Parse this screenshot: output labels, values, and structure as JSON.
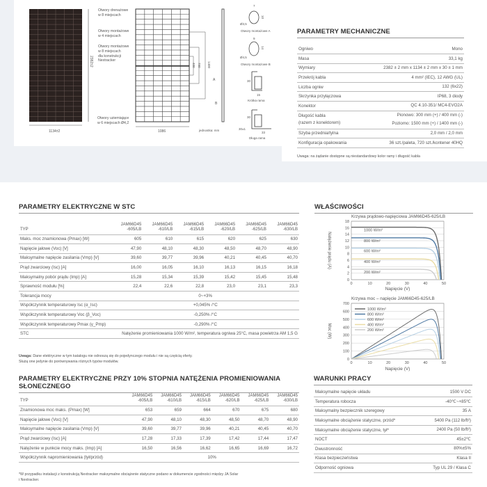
{
  "drawing": {
    "labels": {
      "drain": "Otwory drenażowe\nw 8 miejscach",
      "mount4": "Otwory montażowe\nw 4 miejscach",
      "mount8": "Otwory montażowe\nw 8 miejscach\ndla konstrukcji\nNextracker",
      "ground": "Otwory uziemiające\nw 6 miejscach Ø4,2",
      "holeA": "Otwory montażowe A",
      "holeB": "Otwory montażowe B",
      "shortFrame": "Krótka rama",
      "longFrame": "Długa rama",
      "unit": "jednostka: mm",
      "A": "A",
      "B": "B"
    },
    "dims": {
      "width": "1134±2",
      "height": "2382±2",
      "inner": "1086",
      "d400": "400",
      "d790": "790",
      "d1400": "1400",
      "thick": "30±1",
      "a7": "7",
      "a10": "10",
      "a35": "Ø3,5",
      "b9": "9",
      "b14": "14",
      "b45": "Ø4,5",
      "s30": "30",
      "s15": "15",
      "l30": "30",
      "l33": "33"
    }
  },
  "mechanical": {
    "title": "PARAMETRY MECHANICZNE",
    "rows": [
      [
        "Ogniwo",
        "Mono"
      ],
      [
        "Masa",
        "33,1 kg"
      ],
      [
        "Wymiary",
        "2382 ± 2 mm x 1134 ± 2 mm x 30 ± 1 mm"
      ],
      [
        "Przekrój kabla",
        "4 mm² (IEC), 12 AWG (UL)"
      ],
      [
        "Liczba ogniw",
        "132 (6x22)"
      ],
      [
        "Skrzynka przyłączowa",
        "IP68, 3 diody"
      ],
      [
        "Konektor",
        "QC 4.10-351/ MC4-EVO2A"
      ],
      [
        "Długość kabla\n(razem z konektorem)",
        "Pionowo: 300 mm (+) / 400 mm (-)\nPoziomo: 1500 mm (+) / 1400 mm (-)"
      ],
      [
        "Szyba przednia/tylna",
        "2,0 mm / 2,0 mm"
      ],
      [
        "Konfiguracja opakowania",
        "36 szt./paleta, 720 szt./kontener 40HQ"
      ]
    ],
    "note": "Uwaga: na żądanie dostępne są niestandardowy kolor ramy i długość kabla"
  },
  "stc": {
    "title": "PARAMETRY ELEKTRYCZNE W STC",
    "type_label": "TYP",
    "models": [
      "JAM66D45\n-605/LB",
      "JAM66D45\n-610/LB",
      "JAM66D45\n-615/LB",
      "JAM66D45\n-620/LB",
      "JAM66D45\n-625/LB",
      "JAM66D45\n-630/LB"
    ],
    "rows": [
      [
        "Maks. moc znamionowa (Pmax) [W]",
        "605",
        "610",
        "615",
        "620",
        "625",
        "630"
      ],
      [
        "Napięcie jałowe (Voc) [V]",
        "47,90",
        "48,10",
        "48,30",
        "48,50",
        "48,70",
        "48,90"
      ],
      [
        "Maksymalne napięcie zasilania (Vmp) [V]",
        "39,60",
        "39,77",
        "39,96",
        "40,21",
        "40,45",
        "40,70"
      ],
      [
        "Prąd zwarciowy (Isc) [A]",
        "16,00",
        "16,05",
        "16,10",
        "16,13",
        "16,15",
        "16,18"
      ],
      [
        "Maksymalny pobór prądu (Imp) [A]",
        "15,28",
        "15,34",
        "15,39",
        "15,42",
        "15,45",
        "15,48"
      ],
      [
        "Sprawność modułu [%]",
        "22,4",
        "22,6",
        "22,8",
        "23,0",
        "23,1",
        "23,3"
      ]
    ],
    "span_rows": [
      [
        "Tolerancja mocy",
        "0~+3%"
      ],
      [
        "Współczynnik temperaturowy Isc (α_Isc)",
        "+0,045% /°C"
      ],
      [
        "Współczynnik temperaturowy Voc (β_Voc)",
        "-0,250% /°C"
      ],
      [
        "Współczynnik temperaturowy Pmax (γ_Pmp)",
        "-0,290% /°C"
      ],
      [
        "STC",
        "Natężenie promieniowania 1000 W/m², temperatura ogniwa 25°C, masa powietrza AM 1,5 G"
      ]
    ],
    "note_bold": "Uwaga:",
    "note": " Dane elektryczne w tym katalogu nie odnoszą się do pojedynczego modułu i nie są częścią oferty.",
    "note2": "Służą one jedynie do porównywania różnych typów modułów."
  },
  "bifacial": {
    "title": "PARAMETRY ELEKTRYCZNE PRZY 10% STOPNIA NATĘŻENIA PROMIENIOWANIA SŁONECZNEGO",
    "type_label": "TYP",
    "models": [
      "JAM66D45\n-605/LB",
      "JAM66D45\n-610/LB",
      "JAM66D45\n-615/LB",
      "JAM66D45\n-620/LB",
      "JAM66D45\n-625/LB",
      "JAM66D45\n-630/LB"
    ],
    "rows": [
      [
        "Znamionowa moc maks. (Pmax) [W]",
        "653",
        "659",
        "664",
        "670",
        "675",
        "680"
      ],
      [
        "Napięcie jałowe (Voc) [V]",
        "47,90",
        "48,10",
        "48,30",
        "48,50",
        "48,70",
        "48,90"
      ],
      [
        "Maksymalne napięcie zasilania (Vmp) [V]",
        "39,60",
        "39,77",
        "39,96",
        "40,21",
        "40,45",
        "40,70"
      ],
      [
        "Prąd zwarciowy (Isc) [A]",
        "17,28",
        "17,33",
        "17,39",
        "17,42",
        "17,44",
        "17,47"
      ],
      [
        "Natężenie w punkcie mocy maks. (Imp) [A]",
        "16,50",
        "16,56",
        "16,62",
        "16,65",
        "16,69",
        "16,72"
      ]
    ],
    "span_rows": [
      [
        "Współczynnik napromieniowania (tył/przód)",
        "10%"
      ]
    ],
    "footnote": "*W przypadku instalacji z konstrukcją Nextracker maksymalne obciążenie statyczne podano w dokumencie zgodności między JA Solar\ni Nextracker."
  },
  "operating": {
    "title": "WARUNKI PRACY",
    "rows": [
      [
        "Maksymalne napięcie układu",
        "1500 V DC"
      ],
      [
        "Temperatura robocza",
        "-40℃~+85℃"
      ],
      [
        "Maksymalny bezpiecznik szeregowy",
        "35 A"
      ],
      [
        "Maksymalne obciążenie statyczne, przód*",
        "5400 Pa (112 lb/ft²)"
      ],
      [
        "Maksymalne obciążenie statyczne, tył*",
        "2400 Pa (50 lb/ft²)"
      ],
      [
        "NOCT",
        "45±2℃"
      ],
      [
        "Dwustronność",
        "80%±5%"
      ],
      [
        "Klasa bezpieczeństwa",
        "Klasa II"
      ],
      [
        "Odporność ogniowa",
        "Typ UL 29 / Klasa C"
      ]
    ]
  },
  "properties_title": "WŁAŚCIWOŚCI",
  "chart_data": [
    {
      "type": "line",
      "title": "Krzywa prądowo-napięciowa JAM66D45-625/LB",
      "xlabel": "Napięcie (V)",
      "ylabel": "Natężenie prądu (A)",
      "xlim": [
        0,
        50
      ],
      "ylim": [
        0,
        18
      ],
      "xticks": [
        "0",
        "10",
        "20",
        "30",
        "40",
        "50"
      ],
      "yticks": [
        "0",
        "2",
        "4",
        "6",
        "8",
        "10",
        "12",
        "14",
        "16",
        "18"
      ],
      "grid": true,
      "series": [
        {
          "name": "1000 W/m²",
          "color": "#6b6b6b",
          "isc": 16.15,
          "voc": 48.7
        },
        {
          "name": "800 W/m²",
          "color": "#4f79a3",
          "isc": 12.9,
          "voc": 48.4
        },
        {
          "name": "600 W/m²",
          "color": "#b6d0e4",
          "isc": 9.7,
          "voc": 47.9
        },
        {
          "name": "400 W/m²",
          "color": "#eadca4",
          "isc": 6.4,
          "voc": 47.2
        },
        {
          "name": "200 W/m²",
          "color": "#cccccc",
          "isc": 3.2,
          "voc": 46.0
        }
      ]
    },
    {
      "type": "line",
      "title": "Krzywa moc – napięcie JAM66D45-625/LB",
      "xlabel": "Napięcie (V)",
      "ylabel": "Moc (W)",
      "xlim": [
        0,
        50
      ],
      "ylim": [
        0,
        700
      ],
      "xticks": [
        "0",
        "10",
        "20",
        "30",
        "40",
        "50"
      ],
      "yticks": [
        "0",
        "100",
        "200",
        "300",
        "400",
        "500",
        "600",
        "700"
      ],
      "grid": true,
      "legend": "top-left",
      "series": [
        {
          "name": "1000 W/m²",
          "color": "#6b6b6b",
          "pmax": 625
        },
        {
          "name": "800 W/m²",
          "color": "#4f79a3",
          "pmax": 500
        },
        {
          "name": "600 W/m²",
          "color": "#b6d0e4",
          "pmax": 375
        },
        {
          "name": "400 W/m²",
          "color": "#eadca4",
          "pmax": 250
        },
        {
          "name": "200 W/m²",
          "color": "#cccccc",
          "pmax": 120
        }
      ]
    }
  ]
}
